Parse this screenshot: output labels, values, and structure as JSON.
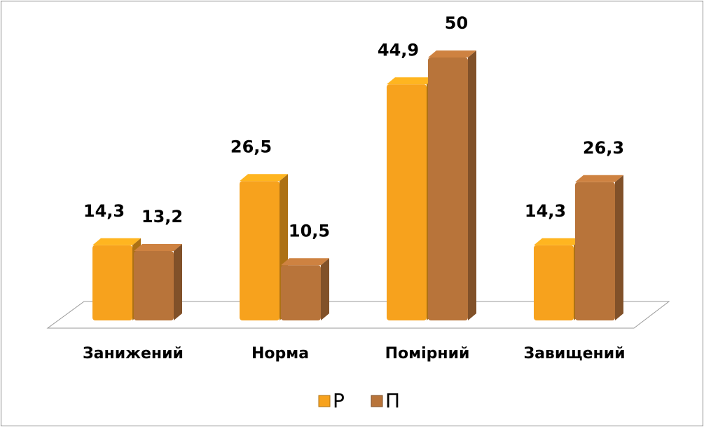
{
  "chart_data": {
    "type": "bar",
    "categories": [
      "Занижений",
      "Норма",
      "Помірний",
      "Завищений"
    ],
    "series": [
      {
        "name": "Р",
        "color": "#f7a21d",
        "values": [
          14.3,
          26.5,
          44.9,
          14.3
        ],
        "value_labels": [
          "14,3",
          "26,5",
          "44,9",
          "14,3"
        ]
      },
      {
        "name": "П",
        "color": "#b8743a",
        "values": [
          13.2,
          10.5,
          50,
          26.3
        ],
        "value_labels": [
          "13,2",
          "10,5",
          "50",
          "26,3"
        ]
      }
    ],
    "legend": "bottom"
  }
}
